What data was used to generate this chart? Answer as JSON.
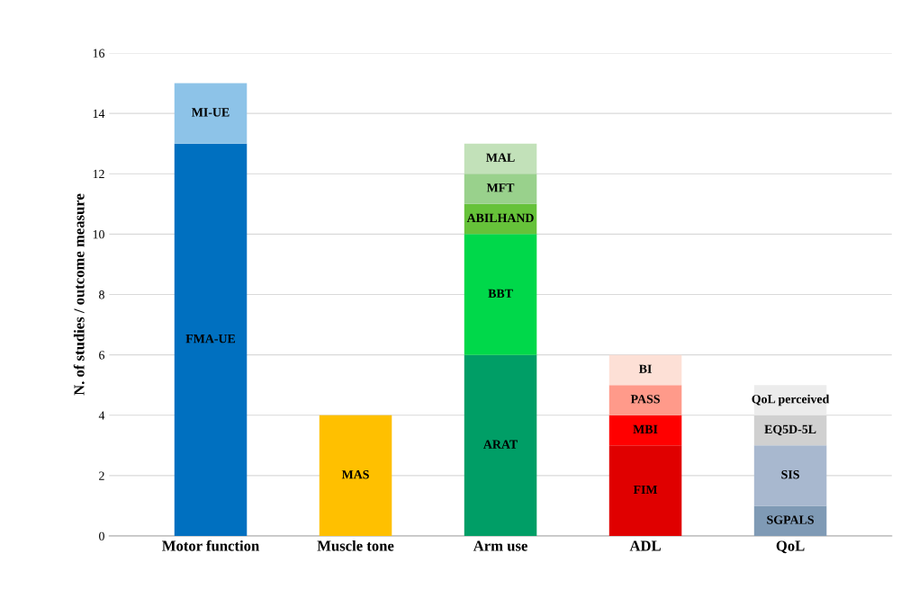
{
  "chart_data": {
    "type": "bar",
    "stacked": true,
    "ylabel": "N. of studies / outcome measure",
    "categories": [
      "Motor function",
      "Muscle tone",
      "Arm use",
      "ADL",
      "QoL"
    ],
    "series": [
      {
        "name": "FMA-UE",
        "color": "#0070c0",
        "values": [
          13,
          null,
          null,
          null,
          null
        ]
      },
      {
        "name": "MI-UE",
        "color": "#8dc3e8",
        "values": [
          2,
          null,
          null,
          null,
          null
        ]
      },
      {
        "name": "MAS",
        "color": "#ffc000",
        "values": [
          null,
          4,
          null,
          null,
          null
        ]
      },
      {
        "name": "ARAT",
        "color": "#009e66",
        "values": [
          null,
          null,
          6,
          null,
          null
        ]
      },
      {
        "name": "BBT",
        "color": "#00d84a",
        "values": [
          null,
          null,
          4,
          null,
          null
        ]
      },
      {
        "name": "ABILHAND",
        "color": "#66c23a",
        "values": [
          null,
          null,
          1,
          null,
          null
        ]
      },
      {
        "name": "MFT",
        "color": "#99d18c",
        "values": [
          null,
          null,
          1,
          null,
          null
        ]
      },
      {
        "name": "MAL",
        "color": "#c2e1b9",
        "values": [
          null,
          null,
          1,
          null,
          null
        ]
      },
      {
        "name": "FIM",
        "color": "#e00000",
        "values": [
          null,
          null,
          null,
          3,
          null
        ]
      },
      {
        "name": "MBI",
        "color": "#ff0000",
        "values": [
          null,
          null,
          null,
          1,
          null
        ]
      },
      {
        "name": "PASS",
        "color": "#ff9a8a",
        "values": [
          null,
          null,
          null,
          1,
          null
        ]
      },
      {
        "name": "BI",
        "color": "#fde0d6",
        "values": [
          null,
          null,
          null,
          1,
          null
        ]
      },
      {
        "name": "SGPALS",
        "color": "#7f9ab5",
        "values": [
          null,
          null,
          null,
          null,
          1
        ]
      },
      {
        "name": "SIS",
        "color": "#a8b8cf",
        "values": [
          null,
          null,
          null,
          null,
          2
        ]
      },
      {
        "name": "EQ5D-5L",
        "color": "#d0d0d0",
        "values": [
          null,
          null,
          null,
          null,
          1
        ]
      },
      {
        "name": "QoL perceived",
        "color": "#ececec",
        "values": [
          null,
          null,
          null,
          null,
          1
        ]
      }
    ],
    "ylim": [
      0,
      16
    ],
    "yticks": [
      0,
      2,
      4,
      6,
      8,
      10,
      12,
      14,
      16
    ],
    "grid": "y",
    "legend": false
  }
}
